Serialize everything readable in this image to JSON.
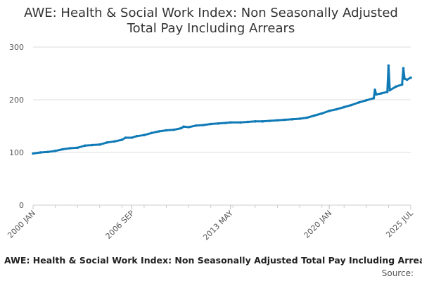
{
  "chart_data": {
    "type": "line",
    "title_lines": [
      "AWE: Health & Social Work Index: Non Seasonally Adjusted",
      "Total Pay Including Arrears"
    ],
    "xlabel": "",
    "ylabel": "",
    "ylim": [
      0,
      300
    ],
    "yticks": [
      0,
      100,
      200,
      300
    ],
    "x_start": "2000 JAN",
    "x_end": "2025 JUL",
    "xticks": [
      "2000 JAN",
      "2006 SEP",
      "2013 MAY",
      "2020 JAN",
      "2025 JUL"
    ],
    "grid": true,
    "line_color": "#0f7ab6",
    "series": [
      {
        "points": [
          [
            "2000 JAN",
            98
          ],
          [
            "2000 JUL",
            100
          ],
          [
            "2001 JAN",
            101
          ],
          [
            "2001 JUL",
            103
          ],
          [
            "2002 JAN",
            106
          ],
          [
            "2002 JUL",
            108
          ],
          [
            "2003 JAN",
            109
          ],
          [
            "2003 JUL",
            113
          ],
          [
            "2004 JAN",
            114
          ],
          [
            "2004 JUL",
            115
          ],
          [
            "2005 JAN",
            119
          ],
          [
            "2005 JUL",
            121
          ],
          [
            "2006 JAN",
            124
          ],
          [
            "2006 APR",
            128
          ],
          [
            "2006 SEP",
            128
          ],
          [
            "2007 JAN",
            131
          ],
          [
            "2007 JUL",
            133
          ],
          [
            "2008 JAN",
            137
          ],
          [
            "2008 JUL",
            140
          ],
          [
            "2009 JAN",
            142
          ],
          [
            "2009 JUL",
            143
          ],
          [
            "2010 JAN",
            146
          ],
          [
            "2010 MAR",
            149
          ],
          [
            "2010 JUL",
            148
          ],
          [
            "2011 JAN",
            151
          ],
          [
            "2011 JUL",
            152
          ],
          [
            "2012 JAN",
            154
          ],
          [
            "2012 JUL",
            155
          ],
          [
            "2013 JAN",
            156
          ],
          [
            "2013 MAY",
            157
          ],
          [
            "2014 JAN",
            157
          ],
          [
            "2014 JUL",
            158
          ],
          [
            "2015 JAN",
            159
          ],
          [
            "2015 JUL",
            159
          ],
          [
            "2016 JAN",
            160
          ],
          [
            "2016 JUL",
            161
          ],
          [
            "2017 JAN",
            162
          ],
          [
            "2017 JUL",
            163
          ],
          [
            "2018 JAN",
            164
          ],
          [
            "2018 JUL",
            166
          ],
          [
            "2019 JAN",
            170
          ],
          [
            "2019 JUL",
            174
          ],
          [
            "2020 JAN",
            179
          ],
          [
            "2020 JUL",
            182
          ],
          [
            "2021 JAN",
            186
          ],
          [
            "2021 JUL",
            190
          ],
          [
            "2022 JAN",
            195
          ],
          [
            "2022 JUL",
            199
          ],
          [
            "2023 JAN",
            203
          ],
          [
            "2023 FEB",
            219
          ],
          [
            "2023 MAR",
            210
          ],
          [
            "2023 JUL",
            212
          ],
          [
            "2023 DEC",
            215
          ],
          [
            "2024 JAN",
            265
          ],
          [
            "2024 FEB",
            218
          ],
          [
            "2024 JUL",
            225
          ],
          [
            "2024 DEC",
            229
          ],
          [
            "2025 JAN",
            260
          ],
          [
            "2025 FEB",
            240
          ],
          [
            "2025 APR",
            238
          ],
          [
            "2025 JUL",
            242
          ]
        ]
      }
    ]
  },
  "footer": {
    "title": "AWE: Health & Social Work Index: Non Seasonally Adjusted Total Pay Including Arrears",
    "source_label": "Source:"
  }
}
